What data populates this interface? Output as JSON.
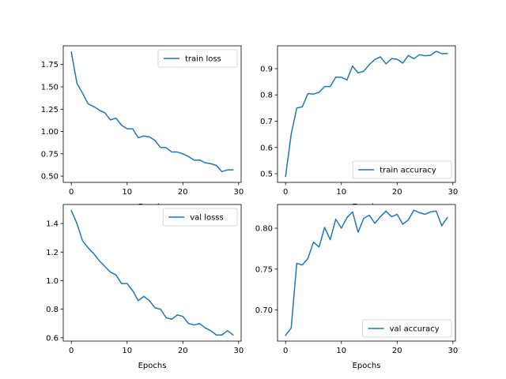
{
  "series_color": "#1f77b4",
  "chart_data": [
    {
      "type": "line",
      "position": "top-left",
      "xlabel": "Epochs",
      "ylabel": "",
      "xlim": [
        -1.45,
        30.45
      ],
      "ylim": [
        0.43,
        1.96
      ],
      "xticks": [
        0,
        10,
        20,
        30
      ],
      "yticks": [
        0.5,
        0.75,
        1.0,
        1.25,
        1.5,
        1.75
      ],
      "ytick_labels": [
        "0.50",
        "0.75",
        "1.00",
        "1.25",
        "1.50",
        "1.75"
      ],
      "legend": {
        "position": "upper right"
      },
      "series": [
        {
          "name": "train loss",
          "x": [
            0,
            1,
            2,
            3,
            4,
            5,
            6,
            7,
            8,
            9,
            10,
            11,
            12,
            13,
            14,
            15,
            16,
            17,
            18,
            19,
            20,
            21,
            22,
            23,
            24,
            25,
            26,
            27,
            28,
            29
          ],
          "values": [
            1.89,
            1.54,
            1.43,
            1.31,
            1.28,
            1.24,
            1.21,
            1.13,
            1.15,
            1.07,
            1.03,
            1.03,
            0.93,
            0.95,
            0.94,
            0.9,
            0.82,
            0.82,
            0.77,
            0.77,
            0.75,
            0.72,
            0.68,
            0.68,
            0.65,
            0.64,
            0.62,
            0.55,
            0.57,
            0.57
          ]
        }
      ]
    },
    {
      "type": "line",
      "position": "top-right",
      "xlabel": "Epochs",
      "ylabel": "",
      "xlim": [
        -1.45,
        30.45
      ],
      "ylim": [
        0.467,
        0.987
      ],
      "xticks": [
        0,
        10,
        20,
        30
      ],
      "yticks": [
        0.5,
        0.6,
        0.7,
        0.8,
        0.9
      ],
      "ytick_labels": [
        "0.5",
        "0.6",
        "0.7",
        "0.8",
        "0.9"
      ],
      "legend": {
        "position": "lower right"
      },
      "series": [
        {
          "name": "train accuracy",
          "x": [
            0,
            1,
            2,
            3,
            4,
            5,
            6,
            7,
            8,
            9,
            10,
            11,
            12,
            13,
            14,
            15,
            16,
            17,
            18,
            19,
            20,
            21,
            22,
            23,
            24,
            25,
            26,
            27,
            28,
            29
          ],
          "values": [
            0.49,
            0.65,
            0.75,
            0.755,
            0.805,
            0.803,
            0.81,
            0.832,
            0.832,
            0.868,
            0.867,
            0.857,
            0.91,
            0.884,
            0.89,
            0.915,
            0.935,
            0.945,
            0.918,
            0.938,
            0.936,
            0.921,
            0.95,
            0.938,
            0.953,
            0.949,
            0.951,
            0.966,
            0.957,
            0.958
          ]
        }
      ]
    },
    {
      "type": "line",
      "position": "bottom-left",
      "xlabel": "Epochs",
      "ylabel": "",
      "xlim": [
        -1.45,
        30.45
      ],
      "ylim": [
        0.577,
        1.533
      ],
      "xticks": [
        0,
        10,
        20,
        30
      ],
      "yticks": [
        0.6,
        0.8,
        1.0,
        1.2,
        1.4
      ],
      "ytick_labels": [
        "0.6",
        "0.8",
        "1.0",
        "1.2",
        "1.4"
      ],
      "legend": {
        "position": "upper right"
      },
      "series": [
        {
          "name": "val losss",
          "x": [
            0,
            1,
            2,
            3,
            4,
            5,
            6,
            7,
            8,
            9,
            10,
            11,
            12,
            13,
            14,
            15,
            16,
            17,
            18,
            19,
            20,
            21,
            22,
            23,
            24,
            25,
            26,
            27,
            28,
            29
          ],
          "values": [
            1.49,
            1.4,
            1.28,
            1.23,
            1.19,
            1.14,
            1.1,
            1.06,
            1.04,
            0.98,
            0.98,
            0.93,
            0.86,
            0.89,
            0.86,
            0.81,
            0.8,
            0.74,
            0.73,
            0.76,
            0.75,
            0.7,
            0.69,
            0.7,
            0.67,
            0.65,
            0.62,
            0.62,
            0.65,
            0.62
          ]
        }
      ]
    },
    {
      "type": "line",
      "position": "bottom-right",
      "xlabel": "Epochs",
      "ylabel": "",
      "xlim": [
        -1.45,
        30.45
      ],
      "ylim": [
        0.662,
        0.829
      ],
      "xticks": [
        0,
        10,
        20,
        30
      ],
      "yticks": [
        0.7,
        0.75,
        0.8
      ],
      "ytick_labels": [
        "0.70",
        "0.75",
        "0.80"
      ],
      "legend": {
        "position": "lower right"
      },
      "series": [
        {
          "name": "val accuracy",
          "x": [
            0,
            1,
            2,
            3,
            4,
            5,
            6,
            7,
            8,
            9,
            10,
            11,
            12,
            13,
            14,
            15,
            16,
            17,
            18,
            19,
            20,
            21,
            22,
            23,
            24,
            25,
            26,
            27,
            28,
            29
          ],
          "values": [
            0.669,
            0.678,
            0.757,
            0.755,
            0.763,
            0.783,
            0.777,
            0.801,
            0.786,
            0.811,
            0.8,
            0.813,
            0.82,
            0.795,
            0.812,
            0.816,
            0.806,
            0.814,
            0.821,
            0.814,
            0.817,
            0.805,
            0.81,
            0.822,
            0.819,
            0.817,
            0.82,
            0.821,
            0.803,
            0.813
          ]
        }
      ]
    }
  ]
}
